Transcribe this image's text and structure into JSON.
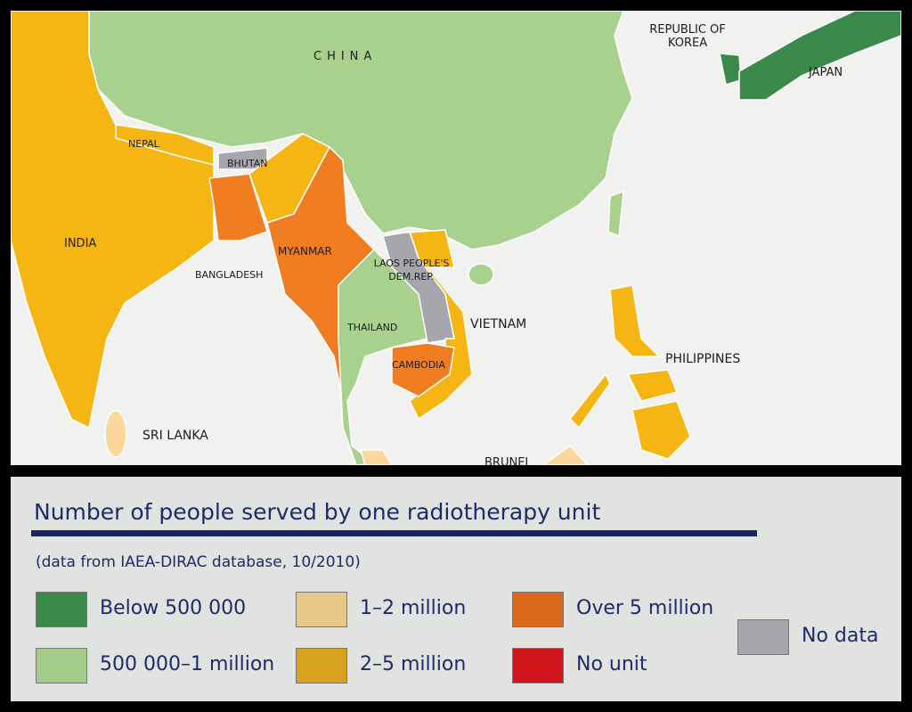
{
  "map": {
    "labels": [
      "CHINA",
      "REPUBLIC OF KOREA",
      "JAPAN",
      "NEPAL",
      "BHUTAN",
      "INDIA",
      "BANGLADESH",
      "MYANMAR",
      "LAOS PEOPLE'S DEM.REP.",
      "THAILAND",
      "VIETNAM",
      "CAMBODIA",
      "PHILIPPINES",
      "SRI LANKA",
      "BRUNEI"
    ]
  },
  "legend": {
    "title": "Number of people served by one radiotherapy unit",
    "subtitle": "(data from IAEA-DIRAC database, 10/2010)",
    "items": [
      {
        "label": "Below 500 000",
        "color": "#3b8a4c"
      },
      {
        "label": "500 000–1 million",
        "color": "#a3cc8a"
      },
      {
        "label": "1–2 million",
        "color": "#e6c888"
      },
      {
        "label": "2–5 million",
        "color": "#d8a21c"
      },
      {
        "label": "Over 5 million",
        "color": "#d9691c"
      },
      {
        "label": "No unit",
        "color": "#d0161c"
      },
      {
        "label": "No data",
        "color": "#a6a7ac"
      }
    ]
  }
}
